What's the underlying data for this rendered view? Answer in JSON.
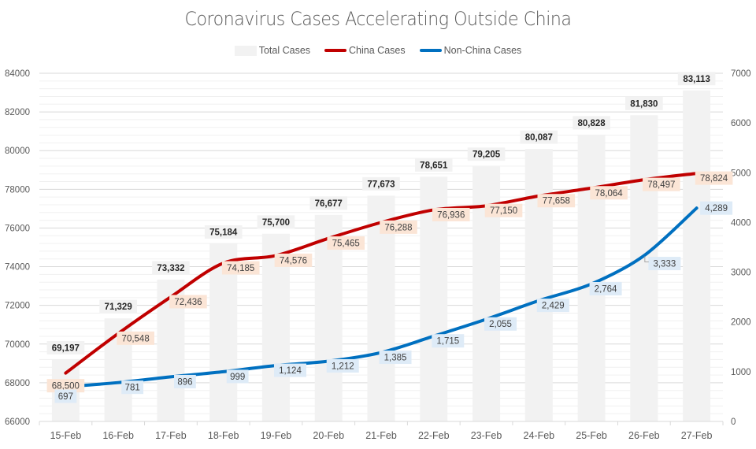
{
  "chart_data": {
    "type": "bar+line",
    "title": "Coronavirus Cases Accelerating Outside China",
    "legend": {
      "position": "top",
      "entries": [
        {
          "name": "Total Cases",
          "kind": "bar",
          "color": "#f2f2f2"
        },
        {
          "name": "China Cases",
          "kind": "line",
          "color": "#c00000"
        },
        {
          "name": "Non-China Cases",
          "kind": "line",
          "color": "#0070c0"
        }
      ]
    },
    "categories": [
      "15-Feb",
      "16-Feb",
      "17-Feb",
      "18-Feb",
      "19-Feb",
      "20-Feb",
      "21-Feb",
      "22-Feb",
      "23-Feb",
      "24-Feb",
      "25-Feb",
      "26-Feb",
      "27-Feb"
    ],
    "series": [
      {
        "name": "Total Cases",
        "type": "bar",
        "axis": "left",
        "color": "#f2f2f2",
        "values": [
          69197,
          71329,
          73332,
          75184,
          75700,
          76677,
          77673,
          78651,
          79205,
          80087,
          80828,
          81830,
          83113
        ],
        "labels": [
          "69,197",
          "71,329",
          "73,332",
          "75,184",
          "75,700",
          "76,677",
          "77,673",
          "78,651",
          "79,205",
          "80,087",
          "80,828",
          "81,830",
          "83,113"
        ]
      },
      {
        "name": "China Cases",
        "type": "line",
        "axis": "left",
        "color": "#c00000",
        "label_bg": "#fbe5d6",
        "values": [
          68500,
          70548,
          72436,
          74185,
          74576,
          75465,
          76288,
          76936,
          77150,
          77658,
          78064,
          78497,
          78824
        ],
        "labels": [
          "68,500",
          "70,548",
          "72,436",
          "74,185",
          "74,576",
          "75,465",
          "76,288",
          "76,936",
          "77,150",
          "77,658",
          "78,064",
          "78,497",
          "78,824"
        ]
      },
      {
        "name": "Non-China Cases",
        "type": "line",
        "axis": "right",
        "color": "#0070c0",
        "label_bg": "#deebf7",
        "values": [
          697,
          781,
          896,
          999,
          1124,
          1212,
          1385,
          1715,
          2055,
          2429,
          2764,
          3333,
          4289
        ],
        "labels": [
          "697",
          "781",
          "896",
          "999",
          "1,124",
          "1,212",
          "1,385",
          "1,715",
          "2,055",
          "2,429",
          "2,764",
          "3,333",
          "4,289"
        ]
      }
    ],
    "y_left": {
      "min": 66000,
      "max": 84000,
      "major": 2000,
      "minor": 400,
      "ticks": [
        "66000",
        "68000",
        "70000",
        "72000",
        "74000",
        "76000",
        "78000",
        "80000",
        "82000",
        "84000"
      ]
    },
    "y_right": {
      "min": 0,
      "max": 7000,
      "major": 1000,
      "ticks": [
        "0",
        "1000",
        "2000",
        "3000",
        "4000",
        "5000",
        "6000",
        "7000"
      ]
    },
    "grid": true,
    "xlabel": "",
    "ylabel": ""
  }
}
